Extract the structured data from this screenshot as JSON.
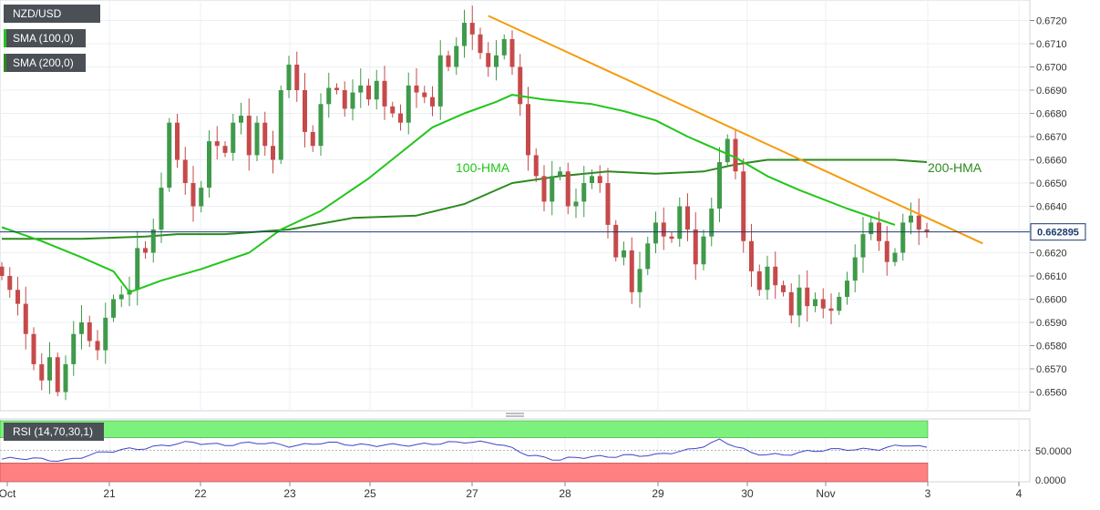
{
  "legend": {
    "symbol": "NZD/USD",
    "sma100": "SMA (100,0)",
    "sma200": "SMA (200,0)"
  },
  "annotations": {
    "hma100": "100-HMA",
    "hma200": "200-HMA",
    "last_price": "0.662895"
  },
  "rsi": {
    "label": "RSI (14,70,30,1)",
    "ticks": [
      "50.0000",
      "0.0000"
    ]
  },
  "colors": {
    "candle_up": "#3f9a4a",
    "candle_down": "#c64a4a",
    "hma100": "#22c51a",
    "hma200": "#2d8a1e",
    "trendline": "#f59a0a",
    "rsi_line": "#3c46c8",
    "rsi_overbought": "#7cf27c",
    "rsi_oversold": "#ff8080"
  },
  "chart_data": {
    "type": "candlestick",
    "title": "NZD/USD",
    "x_ticks": [
      "Oct",
      "21",
      "22",
      "23",
      "25",
      "27",
      "28",
      "29",
      "30",
      "Nov",
      "3",
      "4"
    ],
    "y_ticks": [
      0.656,
      0.657,
      0.658,
      0.659,
      0.66,
      0.661,
      0.662,
      0.663,
      0.664,
      0.665,
      0.666,
      0.667,
      0.668,
      0.669,
      0.67,
      0.671,
      0.672
    ],
    "ylim": [
      0.6549,
      0.6727
    ],
    "last_price": 0.662895,
    "close_path": [
      [
        0,
        0.661
      ],
      [
        2,
        0.6598
      ],
      [
        3,
        0.6585
      ],
      [
        4,
        0.6572
      ],
      [
        5,
        0.6565
      ],
      [
        6,
        0.6575
      ],
      [
        7,
        0.656
      ],
      [
        8,
        0.6572
      ],
      [
        9,
        0.6585
      ],
      [
        10,
        0.659
      ],
      [
        11,
        0.6582
      ],
      [
        12,
        0.6578
      ],
      [
        13,
        0.6592
      ],
      [
        14,
        0.66
      ],
      [
        16,
        0.6604
      ],
      [
        17,
        0.6622
      ],
      [
        18,
        0.662
      ],
      [
        19,
        0.663
      ],
      [
        20,
        0.6648
      ],
      [
        21,
        0.6676
      ],
      [
        22,
        0.666
      ],
      [
        23,
        0.665
      ],
      [
        24,
        0.664
      ],
      [
        25,
        0.6648
      ],
      [
        26,
        0.6668
      ],
      [
        27,
        0.6666
      ],
      [
        28,
        0.6663
      ],
      [
        29,
        0.6676
      ],
      [
        30,
        0.6679
      ],
      [
        31,
        0.6662
      ],
      [
        32,
        0.6676
      ],
      [
        33,
        0.6666
      ],
      [
        34,
        0.666
      ],
      [
        35,
        0.669
      ],
      [
        36,
        0.6701
      ],
      [
        37,
        0.669
      ],
      [
        38,
        0.6672
      ],
      [
        39,
        0.6666
      ],
      [
        40,
        0.6684
      ],
      [
        41,
        0.6691
      ],
      [
        42,
        0.669
      ],
      [
        43,
        0.6682
      ],
      [
        44,
        0.6689
      ],
      [
        45,
        0.6692
      ],
      [
        46,
        0.6686
      ],
      [
        47,
        0.6694
      ],
      [
        48,
        0.6683
      ],
      [
        49,
        0.668
      ],
      [
        50,
        0.6676
      ],
      [
        51,
        0.6692
      ],
      [
        52,
        0.6689
      ],
      [
        53,
        0.6687
      ],
      [
        54,
        0.6683
      ],
      [
        55,
        0.6705
      ],
      [
        56,
        0.67
      ],
      [
        57,
        0.6709
      ],
      [
        58,
        0.6719
      ],
      [
        59,
        0.6714
      ],
      [
        60,
        0.6706
      ],
      [
        61,
        0.67
      ],
      [
        62,
        0.6705
      ],
      [
        63,
        0.6712
      ],
      [
        64,
        0.67
      ],
      [
        65,
        0.6684
      ],
      [
        66,
        0.6662
      ],
      [
        67,
        0.6653
      ],
      [
        68,
        0.6642
      ],
      [
        69,
        0.6653
      ],
      [
        70,
        0.6655
      ],
      [
        71,
        0.664
      ],
      [
        72,
        0.6642
      ],
      [
        73,
        0.665
      ],
      [
        74,
        0.6653
      ],
      [
        75,
        0.665
      ],
      [
        76,
        0.6632
      ],
      [
        77,
        0.6618
      ],
      [
        78,
        0.6621
      ],
      [
        79,
        0.6603
      ],
      [
        80,
        0.6613
      ],
      [
        81,
        0.6624
      ],
      [
        82,
        0.6633
      ],
      [
        83,
        0.6627
      ],
      [
        84,
        0.6626
      ],
      [
        85,
        0.664
      ],
      [
        86,
        0.663
      ],
      [
        87,
        0.6615
      ],
      [
        88,
        0.6627
      ],
      [
        89,
        0.6639
      ],
      [
        90,
        0.6659
      ],
      [
        91,
        0.6669
      ],
      [
        92,
        0.6655
      ],
      [
        93,
        0.6625
      ],
      [
        94,
        0.6612
      ],
      [
        95,
        0.6604
      ],
      [
        96,
        0.6614
      ],
      [
        97,
        0.6606
      ],
      [
        98,
        0.6603
      ],
      [
        99,
        0.6593
      ],
      [
        100,
        0.6605
      ],
      [
        101,
        0.6597
      ],
      [
        102,
        0.66
      ],
      [
        103,
        0.6596
      ],
      [
        104,
        0.6595
      ],
      [
        105,
        0.6601
      ],
      [
        106,
        0.6608
      ],
      [
        107,
        0.6618
      ],
      [
        108,
        0.6628
      ],
      [
        109,
        0.6633
      ],
      [
        110,
        0.6625
      ],
      [
        111,
        0.6616
      ],
      [
        112,
        0.662
      ],
      [
        113,
        0.6633
      ],
      [
        114,
        0.6636
      ],
      [
        115,
        0.663
      ],
      [
        116,
        0.6629
      ]
    ],
    "series": [
      {
        "name": "100-HMA",
        "points": [
          [
            0,
            0.6631
          ],
          [
            5,
            0.6625
          ],
          [
            10,
            0.6618
          ],
          [
            14,
            0.6612
          ],
          [
            16,
            0.6603
          ],
          [
            20,
            0.6608
          ],
          [
            25,
            0.6613
          ],
          [
            31,
            0.662
          ],
          [
            35,
            0.663
          ],
          [
            40,
            0.6638
          ],
          [
            46,
            0.6652
          ],
          [
            50,
            0.6663
          ],
          [
            54,
            0.6674
          ],
          [
            58,
            0.668
          ],
          [
            62,
            0.6685
          ],
          [
            64,
            0.6688
          ],
          [
            68,
            0.6686
          ],
          [
            74,
            0.6684
          ],
          [
            78,
            0.6681
          ],
          [
            82,
            0.6677
          ],
          [
            86,
            0.667
          ],
          [
            90,
            0.6664
          ],
          [
            92,
            0.6661
          ],
          [
            96,
            0.6653
          ],
          [
            100,
            0.6647
          ],
          [
            106,
            0.6639
          ],
          [
            112,
            0.6632
          ]
        ]
      },
      {
        "name": "200-HMA",
        "points": [
          [
            0,
            0.6626
          ],
          [
            10,
            0.6626
          ],
          [
            18,
            0.6627
          ],
          [
            22,
            0.6628
          ],
          [
            28,
            0.6628
          ],
          [
            36,
            0.663
          ],
          [
            44,
            0.6635
          ],
          [
            52,
            0.6636
          ],
          [
            58,
            0.6641
          ],
          [
            64,
            0.665
          ],
          [
            70,
            0.6653
          ],
          [
            76,
            0.6655
          ],
          [
            82,
            0.6654
          ],
          [
            88,
            0.6655
          ],
          [
            92,
            0.6658
          ],
          [
            96,
            0.666
          ],
          [
            100,
            0.666
          ],
          [
            106,
            0.666
          ],
          [
            112,
            0.666
          ],
          [
            116,
            0.6659
          ]
        ]
      },
      {
        "name": "trendline",
        "points": [
          [
            61,
            0.6722
          ],
          [
            123,
            0.6624
          ]
        ]
      }
    ],
    "rsi": {
      "ylim": [
        0,
        100
      ],
      "levels": [
        30,
        50,
        70
      ],
      "path": [
        [
          0,
          36
        ],
        [
          4,
          36
        ],
        [
          8,
          35
        ],
        [
          12,
          44
        ],
        [
          16,
          53
        ],
        [
          20,
          57
        ],
        [
          24,
          62
        ],
        [
          28,
          60
        ],
        [
          32,
          61
        ],
        [
          36,
          58
        ],
        [
          40,
          62
        ],
        [
          44,
          58
        ],
        [
          48,
          60
        ],
        [
          52,
          57
        ],
        [
          56,
          63
        ],
        [
          58,
          65
        ],
        [
          62,
          60
        ],
        [
          66,
          44
        ],
        [
          70,
          35
        ],
        [
          74,
          39
        ],
        [
          78,
          43
        ],
        [
          82,
          41
        ],
        [
          86,
          51
        ],
        [
          90,
          66
        ],
        [
          94,
          45
        ],
        [
          98,
          44
        ],
        [
          102,
          48
        ],
        [
          106,
          53
        ],
        [
          110,
          52
        ],
        [
          114,
          58
        ],
        [
          116,
          55
        ]
      ]
    }
  }
}
